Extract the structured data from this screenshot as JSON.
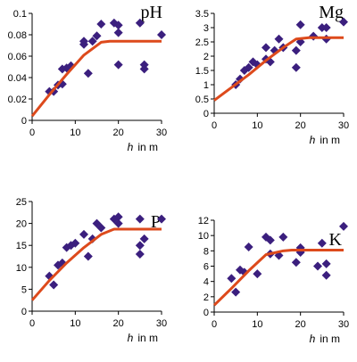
{
  "chart_data": [
    {
      "type": "scatter",
      "title": "pH",
      "xlabel_var": "h",
      "xlabel_unit": "in m",
      "xlim": [
        0,
        30
      ],
      "ylim": [
        0,
        0.1
      ],
      "xticks": [
        0,
        10,
        20,
        30
      ],
      "yticks": [
        0,
        0.02,
        0.04,
        0.06,
        0.08,
        0.1
      ],
      "ytick_labels": [
        "0",
        "0.02",
        "0.04",
        "0.06",
        "0.08",
        "0.1"
      ],
      "grid": false,
      "point_color": "#3b1f7e",
      "line_color": "#dd4a1c",
      "points": [
        [
          4,
          0.027
        ],
        [
          5,
          0.027
        ],
        [
          6,
          0.033
        ],
        [
          7,
          0.034
        ],
        [
          7,
          0.048
        ],
        [
          8,
          0.049
        ],
        [
          9,
          0.051
        ],
        [
          12,
          0.071
        ],
        [
          12,
          0.074
        ],
        [
          13,
          0.044
        ],
        [
          14,
          0.074
        ],
        [
          15,
          0.079
        ],
        [
          16,
          0.09
        ],
        [
          19,
          0.091
        ],
        [
          20,
          0.089
        ],
        [
          20,
          0.052
        ],
        [
          20,
          0.082
        ],
        [
          25,
          0.091
        ],
        [
          26,
          0.052
        ],
        [
          26,
          0.048
        ],
        [
          30,
          0.08
        ]
      ],
      "fit": [
        [
          0,
          0.004
        ],
        [
          4,
          0.024
        ],
        [
          8,
          0.043
        ],
        [
          12,
          0.061
        ],
        [
          16,
          0.073
        ],
        [
          18,
          0.074
        ],
        [
          30,
          0.074
        ]
      ]
    },
    {
      "type": "scatter",
      "title": "Mg",
      "xlabel_var": "h",
      "xlabel_unit": "in m",
      "xlim": [
        0,
        30
      ],
      "ylim": [
        0,
        3.5
      ],
      "xticks": [
        0,
        10,
        20,
        30
      ],
      "yticks": [
        0,
        0.5,
        1,
        1.5,
        2,
        2.5,
        3,
        3.5
      ],
      "ytick_labels": [
        "0",
        "0.5",
        "1",
        "1.5",
        "2",
        "2.5",
        "3",
        "3.5"
      ],
      "grid": false,
      "point_color": "#3b1f7e",
      "line_color": "#dd4a1c",
      "points": [
        [
          5,
          1.0
        ],
        [
          6,
          1.2
        ],
        [
          7,
          1.5
        ],
        [
          8,
          1.6
        ],
        [
          9,
          1.8
        ],
        [
          10,
          1.7
        ],
        [
          12,
          2.3
        ],
        [
          12,
          1.9
        ],
        [
          13,
          1.8
        ],
        [
          14,
          2.2
        ],
        [
          15,
          2.6
        ],
        [
          16,
          2.3
        ],
        [
          19,
          2.2
        ],
        [
          19,
          1.6
        ],
        [
          20,
          2.5
        ],
        [
          20,
          3.1
        ],
        [
          23,
          2.7
        ],
        [
          25,
          3.0
        ],
        [
          26,
          2.6
        ],
        [
          26,
          3.0
        ],
        [
          30,
          3.2
        ]
      ],
      "fit": [
        [
          0,
          0.45
        ],
        [
          4,
          0.9
        ],
        [
          8,
          1.35
        ],
        [
          12,
          1.85
        ],
        [
          16,
          2.3
        ],
        [
          19,
          2.6
        ],
        [
          22,
          2.65
        ],
        [
          30,
          2.65
        ]
      ]
    },
    {
      "type": "scatter",
      "title": "P",
      "xlabel_var": "h",
      "xlabel_unit": "in m",
      "xlim": [
        0,
        30
      ],
      "ylim": [
        0,
        25
      ],
      "xticks": [
        0,
        10,
        20,
        30
      ],
      "yticks": [
        0,
        5,
        10,
        15,
        20,
        25
      ],
      "ytick_labels": [
        "0",
        "5",
        "10",
        "15",
        "20",
        "25"
      ],
      "grid": false,
      "point_color": "#3b1f7e",
      "line_color": "#dd4a1c",
      "points": [
        [
          4,
          8.0
        ],
        [
          5,
          6.0
        ],
        [
          6,
          10.5
        ],
        [
          7,
          11.0
        ],
        [
          8,
          14.5
        ],
        [
          9,
          15.0
        ],
        [
          10,
          15.5
        ],
        [
          12,
          17.5
        ],
        [
          13,
          12.5
        ],
        [
          14,
          16.5
        ],
        [
          15,
          20.0
        ],
        [
          16,
          19.0
        ],
        [
          19,
          21.0
        ],
        [
          20,
          21.5
        ],
        [
          20,
          20.0
        ],
        [
          25,
          21.0
        ],
        [
          25,
          15.0
        ],
        [
          25,
          13.0
        ],
        [
          26,
          16.5
        ],
        [
          30,
          21.0
        ]
      ],
      "fit": [
        [
          0,
          2.5
        ],
        [
          4,
          7.0
        ],
        [
          8,
          11.0
        ],
        [
          12,
          14.5
        ],
        [
          16,
          17.5
        ],
        [
          19,
          18.7
        ],
        [
          30,
          18.7
        ]
      ]
    },
    {
      "type": "scatter",
      "title": "K",
      "xlabel_var": "h",
      "xlabel_unit": "in m",
      "xlim": [
        0,
        30
      ],
      "ylim": [
        0,
        12
      ],
      "xticks": [
        0,
        10,
        20,
        30
      ],
      "yticks": [
        0,
        2,
        4,
        6,
        8,
        10,
        12
      ],
      "ytick_labels": [
        "0",
        "2",
        "4",
        "6",
        "8",
        "10",
        "12"
      ],
      "grid": false,
      "point_color": "#3b1f7e",
      "line_color": "#dd4a1c",
      "points": [
        [
          4,
          4.4
        ],
        [
          5,
          2.6
        ],
        [
          6,
          5.5
        ],
        [
          7,
          5.2
        ],
        [
          8,
          8.5
        ],
        [
          10,
          5.0
        ],
        [
          12,
          9.8
        ],
        [
          13,
          9.4
        ],
        [
          13,
          7.6
        ],
        [
          15,
          7.4
        ],
        [
          16,
          9.8
        ],
        [
          19,
          6.5
        ],
        [
          20,
          8.4
        ],
        [
          20,
          8.0
        ],
        [
          20,
          7.8
        ],
        [
          24,
          6.0
        ],
        [
          25,
          9.0
        ],
        [
          26,
          6.3
        ],
        [
          26,
          4.8
        ],
        [
          30,
          11.2
        ]
      ],
      "fit": [
        [
          0,
          0.9
        ],
        [
          4,
          3.1
        ],
        [
          8,
          5.4
        ],
        [
          12,
          7.5
        ],
        [
          16,
          8.0
        ],
        [
          18,
          8.1
        ],
        [
          30,
          8.1
        ]
      ]
    }
  ]
}
